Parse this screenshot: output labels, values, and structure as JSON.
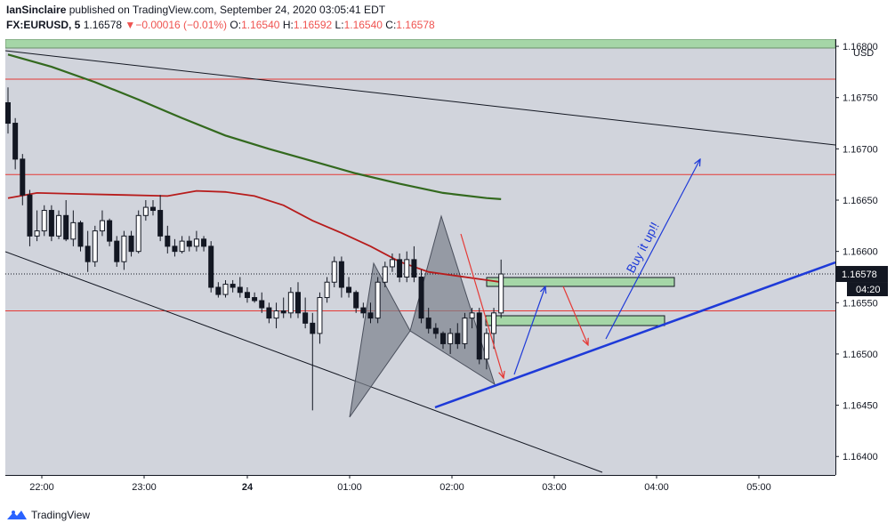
{
  "header": {
    "author": "IanSinclaire",
    "published_text": "published on TradingView.com, September 24, 2020 03:05:41 EDT",
    "symbol": "FX:EURUSD, 5",
    "last_price": "1.16578",
    "change_arrow": "▼",
    "change": "−0.00016 (−0.01%)",
    "open_label": "O:",
    "open": "1.16540",
    "high_label": "H:",
    "high": "1.16592",
    "low_label": "L:",
    "low": "1.16540",
    "close_label": "C:",
    "close": "1.16578"
  },
  "footer": {
    "brand": "TradingView"
  },
  "colors": {
    "up": "#ffffff",
    "down": "#131722",
    "wick": "#131722",
    "ma_fast": "#b71c1c",
    "ma_slow": "#33691e",
    "hline": "#e53935",
    "trend_blue": "#1e3ad8",
    "pattern_fill": "#7c818c",
    "zone_fill": "#a5d6a7",
    "price_label_bg": "#131722"
  },
  "chart_data": {
    "type": "candlestick",
    "instrument": "FX:EURUSD",
    "interval": "5",
    "ylim": [
      1.16382,
      1.16807
    ],
    "currency": "USD",
    "last_price_label": "1.16578",
    "countdown_label": "04:20",
    "y_ticks": [
      "1.16800",
      "1.16750",
      "1.16700",
      "1.16650",
      "1.16600",
      "1.16550",
      "1.16500",
      "1.16450",
      "1.16400"
    ],
    "x_ticks": [
      {
        "label": "22:00",
        "bold": false
      },
      {
        "label": "23:00",
        "bold": false
      },
      {
        "label": "24",
        "bold": true
      },
      {
        "label": "01:00",
        "bold": false
      },
      {
        "label": "02:00",
        "bold": false
      },
      {
        "label": "03:00",
        "bold": false
      },
      {
        "label": "04:00",
        "bold": false
      },
      {
        "label": "05:00",
        "bold": false
      }
    ],
    "candles": [
      [
        1.16745,
        1.1676,
        1.16715,
        1.16725
      ],
      [
        1.16725,
        1.1673,
        1.1668,
        1.1669
      ],
      [
        1.1669,
        1.16695,
        1.16645,
        1.16655
      ],
      [
        1.16655,
        1.1666,
        1.16605,
        1.16615
      ],
      [
        1.16615,
        1.1664,
        1.1661,
        1.1662
      ],
      [
        1.1662,
        1.16645,
        1.16615,
        1.1664
      ],
      [
        1.1664,
        1.16645,
        1.1661,
        1.16615
      ],
      [
        1.16615,
        1.1664,
        1.16612,
        1.16635
      ],
      [
        1.16635,
        1.1665,
        1.1661,
        1.16612
      ],
      [
        1.16612,
        1.1664,
        1.16605,
        1.16628
      ],
      [
        1.16628,
        1.1663,
        1.166,
        1.16605
      ],
      [
        1.16605,
        1.1662,
        1.1658,
        1.1659
      ],
      [
        1.1659,
        1.16625,
        1.16585,
        1.1662
      ],
      [
        1.1662,
        1.1664,
        1.16615,
        1.1663
      ],
      [
        1.1663,
        1.16632,
        1.16605,
        1.1661
      ],
      [
        1.1661,
        1.16615,
        1.16585,
        1.1659
      ],
      [
        1.1659,
        1.1662,
        1.16582,
        1.16615
      ],
      [
        1.16615,
        1.1662,
        1.16595,
        1.166
      ],
      [
        1.166,
        1.1664,
        1.16598,
        1.16635
      ],
      [
        1.16635,
        1.1665,
        1.1663,
        1.16643
      ],
      [
        1.16643,
        1.1665,
        1.16635,
        1.1664
      ],
      [
        1.1664,
        1.16655,
        1.1661,
        1.16615
      ],
      [
        1.16615,
        1.16625,
        1.16598,
        1.16605
      ],
      [
        1.16605,
        1.16612,
        1.16595,
        1.166
      ],
      [
        1.166,
        1.16615,
        1.16598,
        1.1661
      ],
      [
        1.1661,
        1.16615,
        1.166,
        1.16605
      ],
      [
        1.16605,
        1.1662,
        1.166,
        1.16612
      ],
      [
        1.16612,
        1.16615,
        1.166,
        1.16605
      ],
      [
        1.16605,
        1.1661,
        1.1656,
        1.16565
      ],
      [
        1.16565,
        1.1657,
        1.16555,
        1.16558
      ],
      [
        1.16558,
        1.16572,
        1.16555,
        1.16568
      ],
      [
        1.16568,
        1.16572,
        1.1656,
        1.16565
      ],
      [
        1.16565,
        1.16575,
        1.16555,
        1.1656
      ],
      [
        1.1656,
        1.16565,
        1.1655,
        1.16555
      ],
      [
        1.16555,
        1.1656,
        1.1655,
        1.16552
      ],
      [
        1.16552,
        1.1656,
        1.1654,
        1.16545
      ],
      [
        1.16545,
        1.1655,
        1.1653,
        1.16535
      ],
      [
        1.16535,
        1.1655,
        1.16525,
        1.16542
      ],
      [
        1.16542,
        1.16555,
        1.16535,
        1.1654
      ],
      [
        1.1654,
        1.16565,
        1.16535,
        1.1656
      ],
      [
        1.1656,
        1.1657,
        1.16535,
        1.1654
      ],
      [
        1.1654,
        1.16555,
        1.16525,
        1.1653
      ],
      [
        1.1653,
        1.1654,
        1.16445,
        1.1652
      ],
      [
        1.1652,
        1.1656,
        1.1651,
        1.16555
      ],
      [
        1.16555,
        1.16575,
        1.1655,
        1.1657
      ],
      [
        1.1657,
        1.16595,
        1.16565,
        1.1659
      ],
      [
        1.1659,
        1.16595,
        1.16555,
        1.16565
      ],
      [
        1.16565,
        1.16575,
        1.16555,
        1.1656
      ],
      [
        1.1656,
        1.16562,
        1.1654,
        1.16545
      ],
      [
        1.16545,
        1.1655,
        1.16535,
        1.1654
      ],
      [
        1.1654,
        1.1655,
        1.1653,
        1.16535
      ],
      [
        1.16535,
        1.16575,
        1.1653,
        1.1657
      ],
      [
        1.1657,
        1.1659,
        1.16565,
        1.16585
      ],
      [
        1.16585,
        1.16598,
        1.1658,
        1.16592
      ],
      [
        1.16592,
        1.16598,
        1.1657,
        1.16575
      ],
      [
        1.16575,
        1.166,
        1.1657,
        1.16592
      ],
      [
        1.16592,
        1.16605,
        1.1657,
        1.16575
      ],
      [
        1.16575,
        1.16582,
        1.1653,
        1.16535
      ],
      [
        1.16535,
        1.16545,
        1.1652,
        1.16525
      ],
      [
        1.16525,
        1.1653,
        1.16515,
        1.1652
      ],
      [
        1.1652,
        1.16522,
        1.16505,
        1.1651
      ],
      [
        1.1651,
        1.16525,
        1.165,
        1.1652
      ],
      [
        1.1652,
        1.1653,
        1.16505,
        1.1651
      ],
      [
        1.1651,
        1.1654,
        1.16505,
        1.16535
      ],
      [
        1.16535,
        1.16545,
        1.16525,
        1.1654
      ],
      [
        1.1654,
        1.16545,
        1.1649,
        1.16495
      ],
      [
        1.16495,
        1.16525,
        1.16485,
        1.1652
      ],
      [
        1.1652,
        1.16545,
        1.16505,
        1.1654
      ],
      [
        1.1654,
        1.16592,
        1.16535,
        1.16578
      ]
    ],
    "ma_fast_label": "",
    "ma_slow_label": "",
    "horizontal_lines": [
      1.16768,
      1.16675,
      1.16542
    ],
    "annotations": {
      "buy_text": "Buy it up!!"
    }
  }
}
